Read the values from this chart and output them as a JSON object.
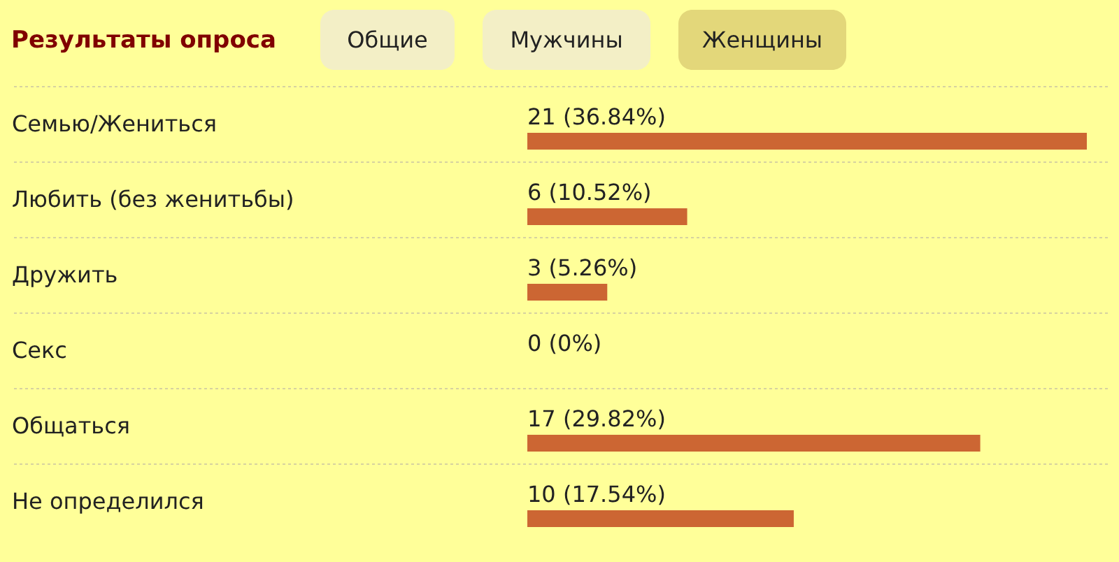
{
  "chart_data": {
    "type": "bar",
    "orientation": "horizontal",
    "title": "Результаты опроса",
    "annotations": [
      "Общие",
      "Мужчины",
      "Женщины"
    ],
    "categories": [
      "Семью/Жениться",
      "Любить (без женитьбы)",
      "Дружить",
      "Секс",
      "Общаться",
      "Не определился"
    ],
    "values": [
      21,
      6,
      3,
      0,
      17,
      10
    ],
    "value_labels": [
      "21 (36.84%)",
      "6 (10.52%)",
      "3 (5.26%)",
      "0 (0%)",
      "17 (29.82%)",
      "10 (17.54%)"
    ],
    "color": "#cc6633",
    "grid": "y",
    "tick_labels": "y"
  }
}
